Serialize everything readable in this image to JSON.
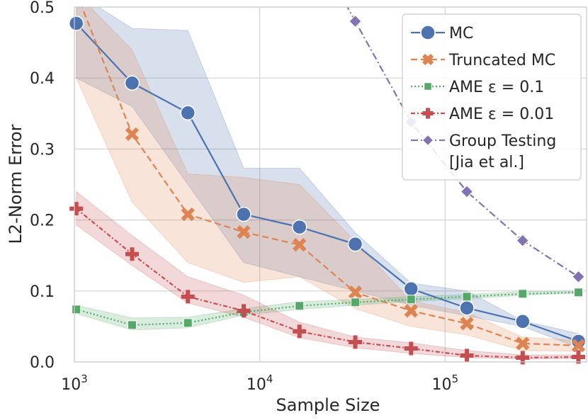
{
  "chart_data": {
    "type": "line",
    "title": "",
    "xlabel": "Sample Size",
    "ylabel": "L2-Norm Error",
    "xscale": "log",
    "xlim": [
      1000,
      580000
    ],
    "ylim": [
      0,
      0.5
    ],
    "grid": true,
    "legend_position": "top-right",
    "x_ticks": [
      {
        "value": 1000,
        "base": "10",
        "exp": "3"
      },
      {
        "value": 10000,
        "base": "10",
        "exp": "4"
      },
      {
        "value": 100000,
        "base": "10",
        "exp": "5"
      }
    ],
    "y_ticks": [
      {
        "value": 0.0,
        "label": "0.0"
      },
      {
        "value": 0.1,
        "label": "0.1"
      },
      {
        "value": 0.2,
        "label": "0.2"
      },
      {
        "value": 0.3,
        "label": "0.3"
      },
      {
        "value": 0.4,
        "label": "0.4"
      },
      {
        "value": 0.5,
        "label": "0.5"
      }
    ],
    "series": [
      {
        "name": "MC",
        "legend": [
          "MC"
        ],
        "color": "#4c72b0",
        "marker": "circle",
        "dash": "",
        "x": [
          1024,
          2048,
          4096,
          8192,
          16384,
          32768,
          65536,
          131072,
          262144,
          524288
        ],
        "y": [
          0.477,
          0.393,
          0.351,
          0.208,
          0.19,
          0.166,
          0.103,
          0.076,
          0.057,
          0.029
        ],
        "band_upper": [
          0.52,
          0.47,
          0.467,
          0.273,
          0.273,
          0.182,
          0.111,
          0.1,
          0.058,
          0.04
        ],
        "band_lower": [
          0.4,
          0.36,
          0.25,
          0.14,
          0.12,
          0.1,
          0.08,
          0.065,
          0.05,
          0.02
        ]
      },
      {
        "name": "Truncated MC",
        "legend": [
          "Truncated MC"
        ],
        "color": "#dd8452",
        "marker": "x",
        "dash": "9,5",
        "x": [
          1024,
          2048,
          4096,
          8192,
          16384,
          32768,
          65536,
          131072,
          262144,
          524288
        ],
        "y": [
          0.52,
          0.321,
          0.208,
          0.183,
          0.165,
          0.098,
          0.072,
          0.054,
          0.026,
          0.023
        ],
        "band_upper": [
          0.52,
          0.44,
          0.265,
          0.26,
          0.25,
          0.17,
          0.086,
          0.07,
          0.035,
          0.03
        ],
        "band_lower": [
          0.4,
          0.225,
          0.14,
          0.112,
          0.12,
          0.075,
          0.05,
          0.038,
          0.016,
          0.015
        ]
      },
      {
        "name": "AME ε = 0.1",
        "legend": [
          "AME ε = 0.1"
        ],
        "color": "#55a868",
        "marker": "square",
        "dash": "2,3",
        "x": [
          1024,
          2048,
          4096,
          8192,
          16384,
          32768,
          65536,
          131072,
          262144,
          524288
        ],
        "y": [
          0.074,
          0.052,
          0.055,
          0.07,
          0.079,
          0.084,
          0.088,
          0.092,
          0.096,
          0.098
        ],
        "band_upper": [
          0.08,
          0.062,
          0.063,
          0.075,
          0.085,
          0.088,
          0.092,
          0.095,
          0.099,
          0.1
        ],
        "band_lower": [
          0.068,
          0.045,
          0.048,
          0.066,
          0.074,
          0.08,
          0.085,
          0.089,
          0.094,
          0.097
        ]
      },
      {
        "name": "AME ε = 0.01",
        "legend": [
          "AME ε = 0.01"
        ],
        "color": "#c44e52",
        "marker": "plus",
        "dash": "6,3,2,3",
        "x": [
          1024,
          2048,
          4096,
          8192,
          16384,
          32768,
          65536,
          131072,
          262144,
          524288
        ],
        "y": [
          0.216,
          0.152,
          0.092,
          0.072,
          0.043,
          0.028,
          0.019,
          0.009,
          0.006,
          0.007
        ],
        "band_upper": [
          0.24,
          0.178,
          0.12,
          0.094,
          0.056,
          0.035,
          0.027,
          0.016,
          0.01,
          0.01
        ],
        "band_lower": [
          0.193,
          0.136,
          0.083,
          0.063,
          0.034,
          0.02,
          0.012,
          0.006,
          0.004,
          0.005
        ]
      },
      {
        "name": "Group Testing [Jia et al.]",
        "legend": [
          "Group Testing",
          "[Jia et al.]"
        ],
        "color": "#8172b3",
        "marker": "diamond",
        "dash": "10,4,2,4",
        "x": [
          32768,
          65536,
          131072,
          262144,
          524288
        ],
        "y": [
          0.48,
          0.338,
          0.24,
          0.171,
          0.12
        ],
        "clip_top": true
      }
    ]
  }
}
